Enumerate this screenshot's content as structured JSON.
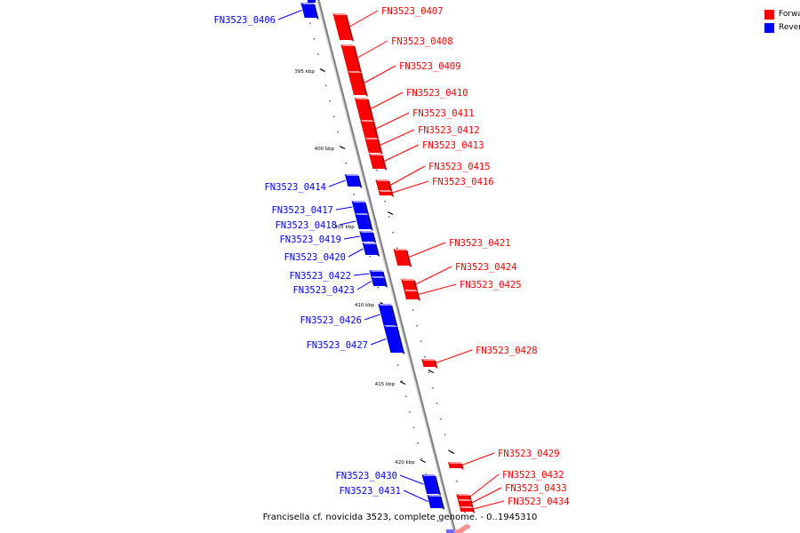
{
  "legend": {
    "forward_label": "Forward",
    "reverse_label": "Reverse",
    "forward_color": "#ff0000",
    "reverse_color": "#0000ff"
  },
  "caption": "Francisella cf. novicida 3523, complete genome. - 0..1945310",
  "backbone_color": "#808080",
  "ticks": [
    "395 kbp",
    "400 kbp",
    "405 kbp",
    "410 kbp",
    "415 kbp",
    "420 kbp"
  ],
  "genes": [
    {
      "id": "FN3523_0406",
      "strand": "reverse"
    },
    {
      "id": "FN3523_0407",
      "strand": "forward"
    },
    {
      "id": "FN3523_0408",
      "strand": "forward"
    },
    {
      "id": "FN3523_0409",
      "strand": "forward"
    },
    {
      "id": "FN3523_0410",
      "strand": "forward"
    },
    {
      "id": "FN3523_0411",
      "strand": "forward"
    },
    {
      "id": "FN3523_0412",
      "strand": "forward"
    },
    {
      "id": "FN3523_0413",
      "strand": "forward"
    },
    {
      "id": "FN3523_0414",
      "strand": "reverse"
    },
    {
      "id": "FN3523_0415",
      "strand": "forward"
    },
    {
      "id": "FN3523_0416",
      "strand": "forward"
    },
    {
      "id": "FN3523_0417",
      "strand": "reverse"
    },
    {
      "id": "FN3523_0418",
      "strand": "reverse"
    },
    {
      "id": "FN3523_0419",
      "strand": "reverse"
    },
    {
      "id": "FN3523_0420",
      "strand": "reverse"
    },
    {
      "id": "FN3523_0421",
      "strand": "forward"
    },
    {
      "id": "FN3523_0422",
      "strand": "reverse"
    },
    {
      "id": "FN3523_0423",
      "strand": "reverse"
    },
    {
      "id": "FN3523_0424",
      "strand": "forward"
    },
    {
      "id": "FN3523_0425",
      "strand": "forward"
    },
    {
      "id": "FN3523_0426",
      "strand": "reverse"
    },
    {
      "id": "FN3523_0427",
      "strand": "reverse"
    },
    {
      "id": "FN3523_0428",
      "strand": "forward"
    },
    {
      "id": "FN3523_0429",
      "strand": "forward"
    },
    {
      "id": "FN3523_0430",
      "strand": "reverse"
    },
    {
      "id": "FN3523_0431",
      "strand": "reverse"
    },
    {
      "id": "FN3523_0432",
      "strand": "forward"
    },
    {
      "id": "FN3523_0433",
      "strand": "forward"
    },
    {
      "id": "FN3523_0434",
      "strand": "forward"
    }
  ]
}
